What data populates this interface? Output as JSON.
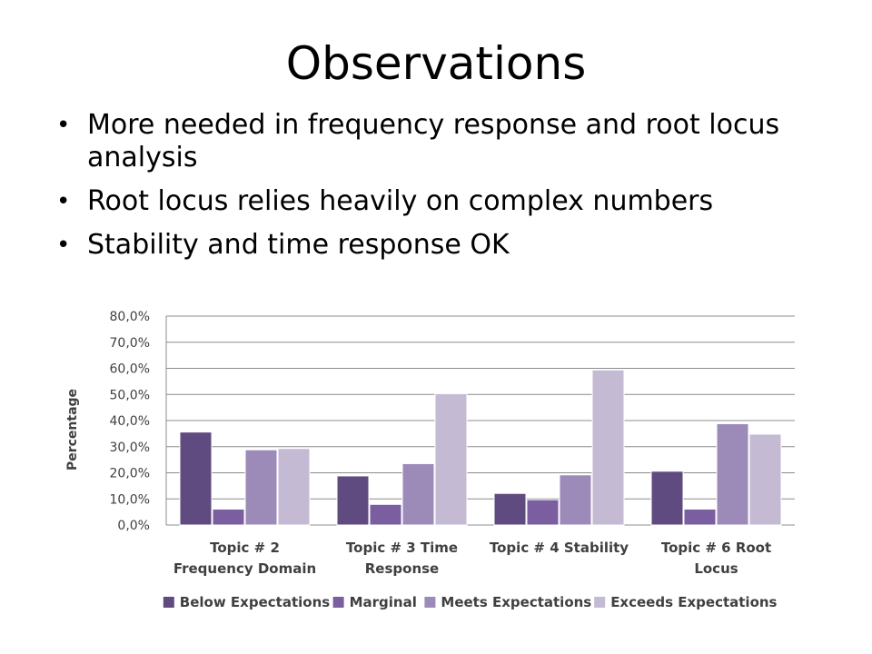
{
  "slide": {
    "title": "Observations",
    "bullets": [
      "More needed in frequency response and root locus analysis",
      "Root locus relies heavily on complex numbers",
      "Stability and time response OK"
    ]
  },
  "chart_data": {
    "type": "bar",
    "title": "",
    "xlabel": "",
    "ylabel": "Percentage",
    "ylim": [
      0,
      80
    ],
    "y_ticks": [
      "0,0%",
      "10,0%",
      "20,0%",
      "30,0%",
      "40,0%",
      "50,0%",
      "60,0%",
      "70,0%",
      "80,0%"
    ],
    "grid": true,
    "legend_position": "bottom",
    "categories": [
      [
        "Topic # 2",
        "Frequency Domain"
      ],
      [
        "Topic # 3 Time",
        "Response"
      ],
      [
        "Topic # 4 Stability"
      ],
      [
        "Topic # 6 Root",
        "Locus"
      ]
    ],
    "series": [
      {
        "name": "Below Expectations",
        "color": "#5f4b7f",
        "values": [
          35.6,
          18.8,
          12.1,
          20.6
        ]
      },
      {
        "name": "Marginal",
        "color": "#7a5ea0",
        "values": [
          6.1,
          7.9,
          9.7,
          6.1
        ]
      },
      {
        "name": "Meets Expectations",
        "color": "#9c8bb8",
        "values": [
          28.8,
          23.5,
          19.2,
          38.8
        ]
      },
      {
        "name": "Exceeds Expectations",
        "color": "#c4bad4",
        "values": [
          29.3,
          50.3,
          59.4,
          34.8
        ]
      }
    ]
  }
}
